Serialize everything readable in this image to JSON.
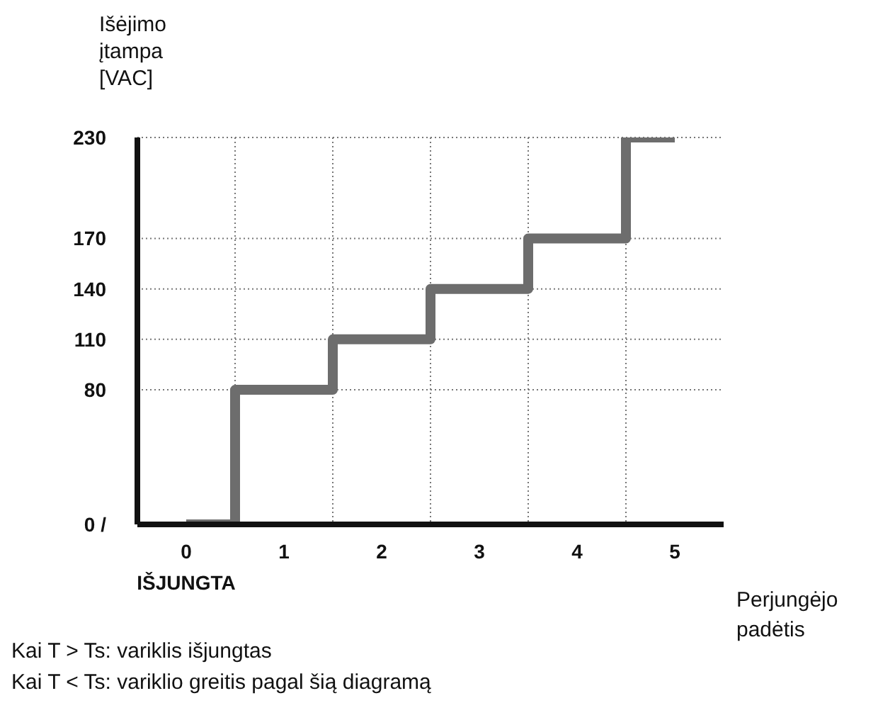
{
  "chart_data": {
    "type": "step",
    "ylabel": "Išėjimo\nįtampa\n[VAC]",
    "xlabel": "Perjungėjo\npadėtis",
    "categories": [
      "0\nIŠJUNGTA",
      "1",
      "2",
      "3",
      "4",
      "5"
    ],
    "series": [
      {
        "color": "#6d6d6d",
        "values": [
          0,
          80,
          110,
          140,
          170,
          230
        ]
      }
    ],
    "ylim": [
      0,
      230
    ],
    "yticks": [
      {
        "value": 0,
        "label": "0 /"
      },
      80,
      110,
      140,
      170,
      230
    ],
    "grid": true,
    "marker": "none",
    "annotations": [
      "Kai T > Ts: variklis išjungtas",
      "Kai T < Ts: variklio greitis pagal šią diagramą"
    ]
  }
}
